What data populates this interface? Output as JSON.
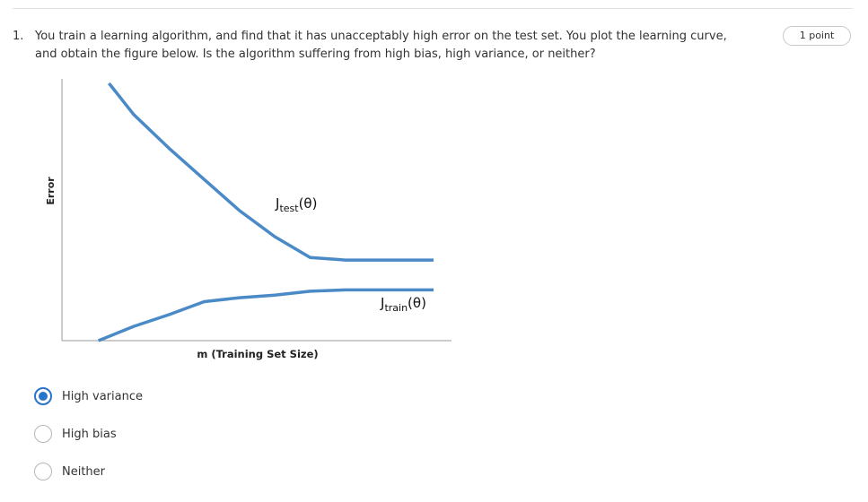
{
  "question": {
    "number": "1.",
    "text_line1": "You train a learning algorithm, and find that it has unacceptably high error on the test set. You plot the learning curve,",
    "text_line2": "and obtain the figure below. Is the algorithm suffering from high bias, high variance, or neither?",
    "points_label": "1 point"
  },
  "chart_data": {
    "type": "line",
    "xlabel": "m (Training Set Size)",
    "ylabel": "Error",
    "xticks": [],
    "yticks": [],
    "series": [
      {
        "name": "Jtest(θ)",
        "label_main": "J",
        "label_sub": "test",
        "label_suffix": "(θ)",
        "color": "#4a8ac6",
        "x": [
          0.08,
          0.15,
          0.25,
          0.35,
          0.45,
          0.55,
          0.65,
          0.75,
          0.85,
          1.0
        ],
        "y": [
          0.99,
          0.87,
          0.74,
          0.62,
          0.5,
          0.4,
          0.32,
          0.31,
          0.31,
          0.31
        ]
      },
      {
        "name": "Jtrain(θ)",
        "label_main": "J",
        "label_sub": "train",
        "label_suffix": "(θ)",
        "color": "#4a8ac6",
        "x": [
          0.05,
          0.15,
          0.25,
          0.35,
          0.45,
          0.55,
          0.65,
          0.75,
          0.85,
          1.0
        ],
        "y": [
          0.0,
          0.055,
          0.1,
          0.15,
          0.165,
          0.175,
          0.19,
          0.195,
          0.195,
          0.195
        ]
      }
    ]
  },
  "options": [
    {
      "label": "High variance",
      "selected": true
    },
    {
      "label": "High bias",
      "selected": false
    },
    {
      "label": "Neither",
      "selected": false
    }
  ],
  "accent_color": "#2a73cc"
}
